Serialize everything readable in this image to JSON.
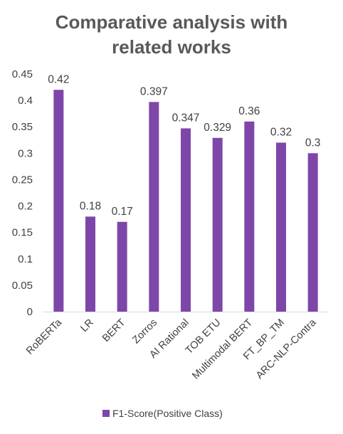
{
  "chart_data": {
    "type": "bar",
    "title": "Comparative analysis with related works",
    "title_lines": [
      "Comparative analysis with",
      "related works"
    ],
    "categories": [
      "RoBERTa",
      "LR",
      "BERT",
      "Zorros",
      "AI Rational",
      "TOB ETU",
      "Multimodal BERT",
      "FT_BP_TM",
      "ARC-NLP-Contra"
    ],
    "series": [
      {
        "name": "F1-Score(Positive Class)",
        "values": [
          0.42,
          0.18,
          0.17,
          0.397,
          0.347,
          0.329,
          0.36,
          0.32,
          0.3
        ],
        "value_labels": [
          "0.42",
          "0.18",
          "0.17",
          "0.397",
          "0.347",
          "0.329",
          "0.36",
          "0.32",
          "0.3"
        ],
        "color": "#7E46A8"
      }
    ],
    "ylim": [
      0,
      0.45
    ],
    "yticks": [
      0,
      0.05,
      0.1,
      0.15,
      0.2,
      0.25,
      0.3,
      0.35,
      0.4,
      0.45
    ],
    "ytick_labels": [
      "0",
      "0.05",
      "0.1",
      "0.15",
      "0.2",
      "0.25",
      "0.3",
      "0.35",
      "0.4",
      "0.45"
    ],
    "xlabel": "",
    "ylabel": "",
    "grid": false,
    "legend_position": "bottom"
  }
}
